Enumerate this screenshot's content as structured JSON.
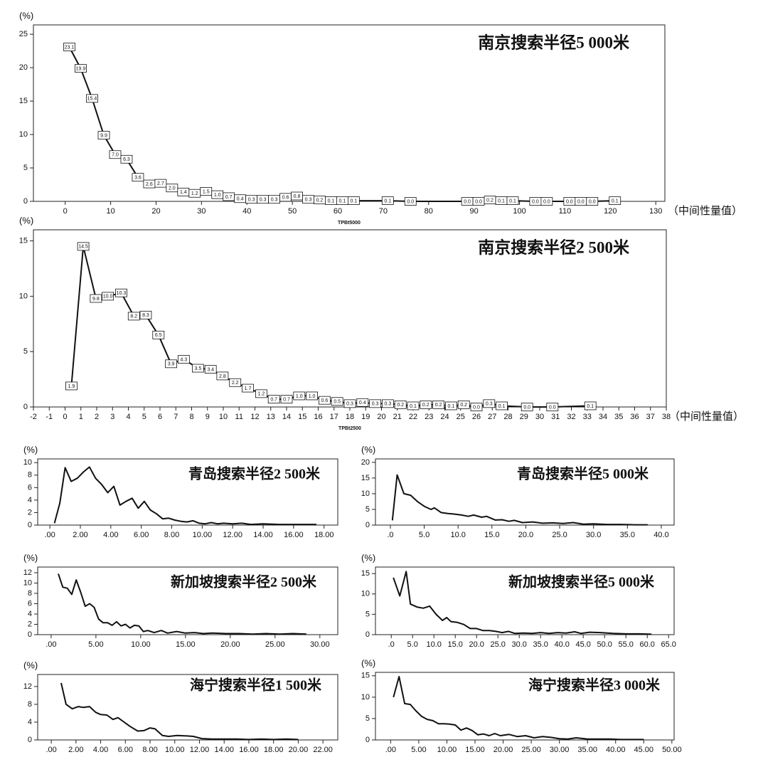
{
  "chart_data": [
    {
      "type": "line",
      "title": "南京搜索半径5 000米",
      "y_label": "(%)",
      "x_label": "（中间性量值）",
      "x_name": "TPBt5000",
      "x": [
        0.9,
        3.4,
        5.9,
        8.5,
        11,
        13.5,
        16,
        18.5,
        21,
        23.5,
        26,
        28.5,
        31,
        33.5,
        36,
        38.5,
        41,
        43.5,
        46,
        48.5,
        51,
        53.5,
        56,
        58.5,
        61,
        63.5,
        71,
        76,
        88.5,
        91,
        93.5,
        96,
        98.5,
        103.5,
        106,
        111,
        113.5,
        116,
        121
      ],
      "values": [
        23.1,
        19.9,
        15.4,
        9.9,
        7.0,
        6.3,
        3.6,
        2.6,
        2.7,
        2.0,
        1.4,
        1.2,
        1.5,
        1.0,
        0.7,
        0.4,
        0.3,
        0.3,
        0.3,
        0.6,
        0.8,
        0.3,
        0.2,
        0.1,
        0.1,
        0.1,
        0.1,
        0.0,
        0.0,
        0.0,
        0.2,
        0.1,
        0.1,
        0.0,
        0.0,
        0.0,
        0.0,
        0.0,
        0.1
      ],
      "value_labels": [
        "23.1",
        "19.9",
        "15.4",
        "9.9",
        "7.0",
        "6.3",
        "3.6",
        "2.6",
        "2.7",
        "2.0",
        "1.4",
        "1.2",
        "1.5",
        "1.0",
        "0.7",
        "0.4",
        "0.3",
        "0.3",
        "0.3",
        "0.6",
        "0.8",
        "0.3",
        "0.2",
        "0.1",
        "0.1",
        "0.1",
        "0.1",
        "0.0",
        "0.0",
        "0.0",
        "0.2",
        "0.1",
        "0.1",
        "0.0",
        "0.0",
        "0.0",
        "0.0",
        "0.0",
        "0.1"
      ],
      "color": "#111111",
      "xlim": [
        -7,
        132
      ],
      "ylim": [
        0,
        26.4
      ],
      "xticks": [
        0,
        10,
        20,
        30,
        40,
        50,
        60,
        70,
        80,
        90,
        100,
        110,
        120,
        130
      ],
      "yticks": [
        0,
        5,
        10,
        15,
        20,
        25
      ]
    },
    {
      "type": "line",
      "title": "南京搜索半径2 500米",
      "y_label": "(%)",
      "x_label": "（中间性量值）",
      "x_name": "TPBt2500",
      "x": [
        0.4,
        1.15,
        1.95,
        2.7,
        3.55,
        4.35,
        5.1,
        5.9,
        6.7,
        7.5,
        8.4,
        9.2,
        9.95,
        10.75,
        11.55,
        12.4,
        13.2,
        14,
        14.8,
        15.6,
        16.4,
        17.2,
        18,
        18.8,
        19.6,
        20.4,
        21.2,
        22,
        22.8,
        23.6,
        24.4,
        25.2,
        26,
        26.8,
        27.6,
        29.2,
        30.8,
        33.2
      ],
      "values": [
        1.9,
        14.5,
        9.8,
        10.0,
        10.3,
        8.2,
        8.3,
        6.5,
        3.9,
        4.3,
        3.5,
        3.4,
        2.8,
        2.2,
        1.7,
        1.2,
        0.7,
        0.7,
        1.0,
        1.0,
        0.6,
        0.5,
        0.3,
        0.4,
        0.3,
        0.3,
        0.2,
        0.1,
        0.2,
        0.2,
        0.1,
        0.2,
        0.0,
        0.3,
        0.1,
        0.0,
        0.0,
        0.1
      ],
      "value_labels": [
        "1.9",
        "14.5",
        "9.8",
        "10.0",
        "10.3",
        "8.2",
        "8.3",
        "6.5",
        "3.9",
        "4.3",
        "3.5",
        "3.4",
        "2.8",
        "2.2",
        "1.7",
        "1.2",
        "0.7",
        "0.7",
        "1.0",
        "1.0",
        "0.6",
        "0.5",
        "0.3",
        "0.4",
        "0.3",
        "0.3",
        "0.2",
        "0.1",
        "0.2",
        "0.2",
        "0.1",
        "0.2",
        "0.0",
        "0.3",
        "0.1",
        "0.0",
        "0.0",
        "0.1"
      ],
      "color": "#111111",
      "xlim": [
        -2,
        38
      ],
      "ylim": [
        0,
        16
      ],
      "xticks": [
        -2,
        -1,
        0,
        1,
        2,
        3,
        4,
        5,
        6,
        7,
        8,
        9,
        10,
        11,
        12,
        13,
        14,
        15,
        16,
        17,
        18,
        19,
        20,
        21,
        22,
        23,
        24,
        25,
        26,
        27,
        28,
        29,
        30,
        31,
        32,
        33,
        34,
        35,
        36,
        37,
        38
      ],
      "yticks": [
        0,
        5,
        10,
        15
      ]
    },
    {
      "type": "line",
      "title": "青岛搜索半径2 500米",
      "y_label": "(%)",
      "x": [
        0.3,
        0.65,
        1.0,
        1.4,
        1.8,
        2.2,
        2.6,
        3.0,
        3.4,
        3.8,
        4.2,
        4.6,
        5.0,
        5.4,
        5.8,
        6.2,
        6.6,
        7.0,
        7.4,
        7.8,
        8.2,
        8.6,
        9.0,
        9.4,
        9.8,
        10.2,
        10.6,
        11,
        11.4,
        12,
        12.6,
        13.2,
        14,
        15,
        16,
        17.5
      ],
      "values": [
        0.3,
        3.5,
        9.2,
        7.0,
        7.5,
        8.5,
        9.3,
        7.5,
        6.5,
        5.2,
        6.2,
        3.2,
        3.8,
        4.3,
        2.7,
        3.8,
        2.4,
        1.8,
        1.0,
        1.1,
        0.8,
        0.6,
        0.5,
        0.7,
        0.3,
        0.2,
        0.4,
        0.2,
        0.3,
        0.2,
        0.3,
        0.1,
        0.2,
        0.1,
        0.1,
        0.1
      ],
      "color": "#111111",
      "xlim": [
        -0.8,
        18.9
      ],
      "ylim": [
        0,
        10.6
      ],
      "xticks": [
        {
          "value": 0,
          "label": ".00"
        },
        {
          "value": 2,
          "label": "2.00"
        },
        {
          "value": 4,
          "label": "4.00"
        },
        {
          "value": 6,
          "label": "6.00"
        },
        {
          "value": 8,
          "label": "8.00"
        },
        {
          "value": 10,
          "label": "10.00"
        },
        {
          "value": 12,
          "label": "12.00"
        },
        {
          "value": 14,
          "label": "14.00"
        },
        {
          "value": 16,
          "label": "16.00"
        },
        {
          "value": 18,
          "label": "18.00"
        }
      ],
      "yticks": [
        0,
        2,
        4,
        6,
        8,
        10
      ]
    },
    {
      "type": "line",
      "title": "青岛搜索半径5 000米",
      "y_label": "(%)",
      "x": [
        0.3,
        1.0,
        2.0,
        3.0,
        4,
        5,
        6,
        6.5,
        7.5,
        8.5,
        9.5,
        10.5,
        11.5,
        12.3,
        13.5,
        14.2,
        15.5,
        16.5,
        17.5,
        18.3,
        19.5,
        21,
        22.5,
        24,
        25.5,
        27,
        28.5,
        30,
        32,
        34,
        36,
        38
      ],
      "values": [
        1.5,
        16,
        10,
        9.5,
        7.5,
        6,
        5,
        5.5,
        4,
        3.7,
        3.5,
        3.2,
        2.8,
        3.2,
        2.5,
        2.8,
        1.6,
        1.7,
        1.2,
        1.5,
        0.8,
        1.0,
        0.6,
        0.7,
        0.5,
        0.8,
        0.3,
        0.4,
        0.2,
        0.2,
        0.1,
        0.1
      ],
      "color": "#111111",
      "xlim": [
        -2.2,
        41.9
      ],
      "ylim": [
        0,
        21.1
      ],
      "xticks": [
        {
          "value": 0,
          "label": ".0"
        },
        {
          "value": 5,
          "label": "5.0"
        },
        {
          "value": 10,
          "label": "10.0"
        },
        {
          "value": 15,
          "label": "15.0"
        },
        {
          "value": 20,
          "label": "20.0"
        },
        {
          "value": 25,
          "label": "25.0"
        },
        {
          "value": 30,
          "label": "30.0"
        },
        {
          "value": 35,
          "label": "35.0"
        },
        {
          "value": 40,
          "label": "40.0"
        }
      ],
      "yticks": [
        0,
        5,
        10,
        15,
        20
      ]
    },
    {
      "type": "line",
      "title": "新加坡搜索半径2 500米",
      "y_label": "(%)",
      "x": [
        0.8,
        1.3,
        1.8,
        2.3,
        2.8,
        3.3,
        3.8,
        4.3,
        4.8,
        5.3,
        5.8,
        6.3,
        6.8,
        7.3,
        7.8,
        8.3,
        8.8,
        9.3,
        9.8,
        10.3,
        10.8,
        11.5,
        12.3,
        13,
        14,
        15,
        16,
        17,
        18,
        19.5,
        21,
        22.5,
        24,
        25.5,
        27,
        28.5
      ],
      "values": [
        11.8,
        9.2,
        9.0,
        7.8,
        10.6,
        8.2,
        5.5,
        6.0,
        5.3,
        3.0,
        2.3,
        2.3,
        1.8,
        2.5,
        1.7,
        2.0,
        1.3,
        1.8,
        1.7,
        0.6,
        0.8,
        0.4,
        0.8,
        0.3,
        0.6,
        0.3,
        0.4,
        0.2,
        0.3,
        0.2,
        0.2,
        0.1,
        0.2,
        0.1,
        0.2,
        0.1
      ],
      "color": "#111111",
      "xlim": [
        -1.5,
        32
      ],
      "ylim": [
        0,
        13.1
      ],
      "xticks": [
        {
          "value": 0,
          "label": ".00"
        },
        {
          "value": 5,
          "label": "5.00"
        },
        {
          "value": 10,
          "label": "10.00"
        },
        {
          "value": 15,
          "label": "15.00"
        },
        {
          "value": 20,
          "label": "20.00"
        },
        {
          "value": 25,
          "label": "25.00"
        },
        {
          "value": 30,
          "label": "30.00"
        }
      ],
      "yticks": [
        0,
        2,
        4,
        6,
        8,
        10,
        12
      ]
    },
    {
      "type": "line",
      "title": "新加坡搜索半径5 000米",
      "y_label": "(%)",
      "x": [
        0.5,
        2,
        3.5,
        4.5,
        6,
        7.5,
        9,
        10.5,
        12,
        13,
        14,
        15.5,
        17,
        18.5,
        20,
        21.5,
        23,
        24.5,
        26,
        27.5,
        29,
        31,
        33,
        35,
        37,
        39,
        41,
        43,
        44.5,
        46.5,
        49,
        52,
        55,
        58,
        61
      ],
      "values": [
        14,
        9.5,
        15.5,
        7.5,
        6.8,
        6.5,
        7,
        5,
        3.5,
        4.2,
        3.2,
        3,
        2.5,
        1.5,
        1.5,
        1.0,
        1.0,
        0.8,
        0.5,
        0.8,
        0.3,
        0.4,
        0.3,
        0.5,
        0.3,
        0.5,
        0.4,
        0.7,
        0.3,
        0.6,
        0.5,
        0.3,
        0.2,
        0.2,
        0.1
      ],
      "color": "#111111",
      "xlim": [
        -3.7,
        66.3
      ],
      "ylim": [
        0,
        16.6
      ],
      "xticks": [
        {
          "value": 0,
          "label": ".0"
        },
        {
          "value": 5,
          "label": "5.0"
        },
        {
          "value": 10,
          "label": "10.0"
        },
        {
          "value": 15,
          "label": "15.0"
        },
        {
          "value": 20,
          "label": "20.0"
        },
        {
          "value": 25,
          "label": "25.0"
        },
        {
          "value": 30,
          "label": "30.0"
        },
        {
          "value": 35,
          "label": "35.0"
        },
        {
          "value": 40,
          "label": "40.0"
        },
        {
          "value": 45,
          "label": "45.0"
        },
        {
          "value": 50,
          "label": "50.0"
        },
        {
          "value": 55,
          "label": "55.0"
        },
        {
          "value": 60,
          "label": "60.0"
        },
        {
          "value": 65,
          "label": "65.0"
        }
      ],
      "yticks": [
        0,
        5,
        10,
        15
      ]
    },
    {
      "type": "line",
      "title": "海宁搜索半径1 500米",
      "y_label": "(%)",
      "x": [
        0.8,
        1.2,
        1.7,
        2.2,
        2.6,
        3.1,
        3.6,
        4.0,
        4.5,
        5.0,
        5.4,
        5.9,
        6.4,
        7.0,
        7.5,
        8.0,
        8.4,
        9.0,
        9.5,
        10.2,
        11,
        11.5,
        12.2,
        13,
        14,
        15,
        16,
        17,
        18,
        19,
        20
      ],
      "values": [
        12.8,
        8,
        7,
        7.5,
        7.3,
        7.5,
        6.2,
        5.7,
        5.6,
        4.6,
        5.0,
        4.0,
        3.0,
        2.0,
        2.1,
        2.7,
        2.5,
        1.0,
        0.8,
        1.0,
        0.9,
        0.8,
        0.3,
        0.2,
        0.2,
        0.2,
        0.1,
        0.2,
        0.1,
        0.2,
        0.1
      ],
      "color": "#111111",
      "xlim": [
        -1.1,
        23.2
      ],
      "ylim": [
        0,
        14.7
      ],
      "xticks": [
        {
          "value": 0,
          "label": ".00"
        },
        {
          "value": 2,
          "label": "2.00"
        },
        {
          "value": 4,
          "label": "4.00"
        },
        {
          "value": 6,
          "label": "6.00"
        },
        {
          "value": 8,
          "label": "8.00"
        },
        {
          "value": 10,
          "label": "10.00"
        },
        {
          "value": 12,
          "label": "12.00"
        },
        {
          "value": 14,
          "label": "14.00"
        },
        {
          "value": 16,
          "label": "16.00"
        },
        {
          "value": 18,
          "label": "18.00"
        },
        {
          "value": 20,
          "label": "20.00"
        },
        {
          "value": 22,
          "label": "22.00"
        }
      ],
      "yticks": [
        0,
        4,
        8,
        12
      ]
    },
    {
      "type": "line",
      "title": "海宁搜索半径3 000米",
      "y_label": "(%)",
      "x": [
        0.5,
        1.5,
        2.5,
        3.5,
        4.5,
        5.5,
        6.5,
        7.5,
        8.5,
        9.5,
        10.5,
        11.5,
        12.5,
        13.5,
        14.5,
        15.5,
        16.5,
        17.5,
        18.5,
        19.5,
        21,
        22.5,
        24,
        25.5,
        27,
        28.5,
        30,
        31.5,
        33,
        35,
        37,
        39,
        41,
        43,
        45
      ],
      "values": [
        10,
        14.8,
        8.5,
        8.3,
        6.8,
        5.5,
        4.8,
        4.5,
        3.8,
        3.8,
        3.7,
        3.5,
        2.3,
        2.8,
        2.2,
        1.2,
        1.4,
        1.0,
        1.5,
        1.0,
        1.3,
        0.8,
        1.0,
        0.5,
        0.8,
        0.6,
        0.3,
        0.2,
        0.5,
        0.2,
        0.2,
        0.2,
        0.1,
        0.1,
        0.1
      ],
      "color": "#111111",
      "xlim": [
        -2.7,
        50.4
      ],
      "ylim": [
        0,
        15.8
      ],
      "xticks": [
        {
          "value": 0,
          "label": ".00"
        },
        {
          "value": 5,
          "label": "5.00"
        },
        {
          "value": 10,
          "label": "10.00"
        },
        {
          "value": 15,
          "label": "15.00"
        },
        {
          "value": 20,
          "label": "20.00"
        },
        {
          "value": 25,
          "label": "25.00"
        },
        {
          "value": 30,
          "label": "30.00"
        },
        {
          "value": 35,
          "label": "35.00"
        },
        {
          "value": 40,
          "label": "40.00"
        },
        {
          "value": 45,
          "label": "45.00"
        },
        {
          "value": 50,
          "label": "50.00"
        }
      ],
      "yticks": [
        0,
        5,
        10,
        15
      ]
    }
  ]
}
